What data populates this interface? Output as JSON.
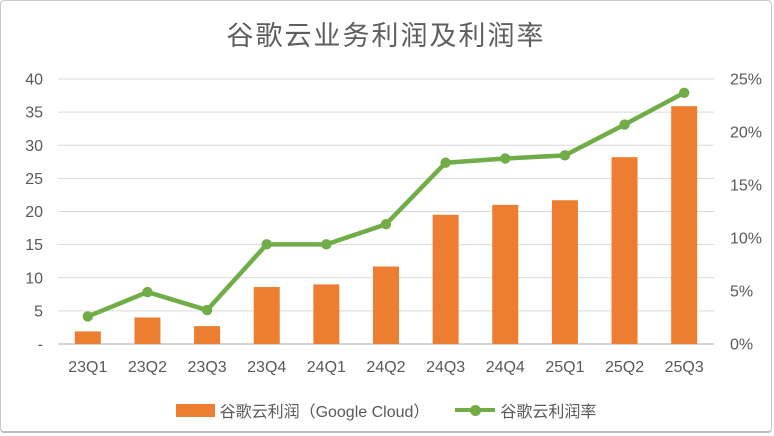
{
  "window": {
    "background": "#FFFFFF",
    "border_color": "#C9C9C9"
  },
  "chart_data": {
    "type": "combo",
    "title": "谷歌云业务利润及利润率",
    "categories": [
      "23Q1",
      "23Q2",
      "23Q3",
      "23Q4",
      "24Q1",
      "24Q2",
      "24Q3",
      "24Q4",
      "25Q1",
      "25Q2",
      "25Q3"
    ],
    "series": [
      {
        "name": "谷歌云利润（Google Cloud）",
        "type": "bar",
        "axis": "left",
        "color": "#ED7D31",
        "values": [
          1.9,
          4.0,
          2.7,
          8.6,
          9.0,
          11.7,
          19.5,
          21.0,
          21.7,
          28.2,
          35.9
        ]
      },
      {
        "name": "谷歌云利润率",
        "type": "line",
        "axis": "right",
        "color": "#70AD47",
        "values_percent": [
          2.6,
          4.9,
          3.2,
          9.4,
          9.4,
          11.3,
          17.1,
          17.5,
          17.8,
          20.7,
          23.7
        ]
      }
    ],
    "left_axis": {
      "min": 0,
      "max": 40,
      "step": 5,
      "tick_labels_bottom_to_top": [
        "-",
        "5",
        "10",
        "15",
        "20",
        "25",
        "30",
        "35",
        "40"
      ]
    },
    "right_axis": {
      "min": 0,
      "max": 25,
      "step": 5,
      "tick_labels_bottom_to_top": [
        "0%",
        "5%",
        "10%",
        "15%",
        "20%",
        "25%"
      ]
    },
    "grid": true,
    "gridline_color": "#D9D9D9",
    "baseline_color": "#C6C6C6",
    "text_color": "#595959",
    "legend_position": "bottom"
  }
}
